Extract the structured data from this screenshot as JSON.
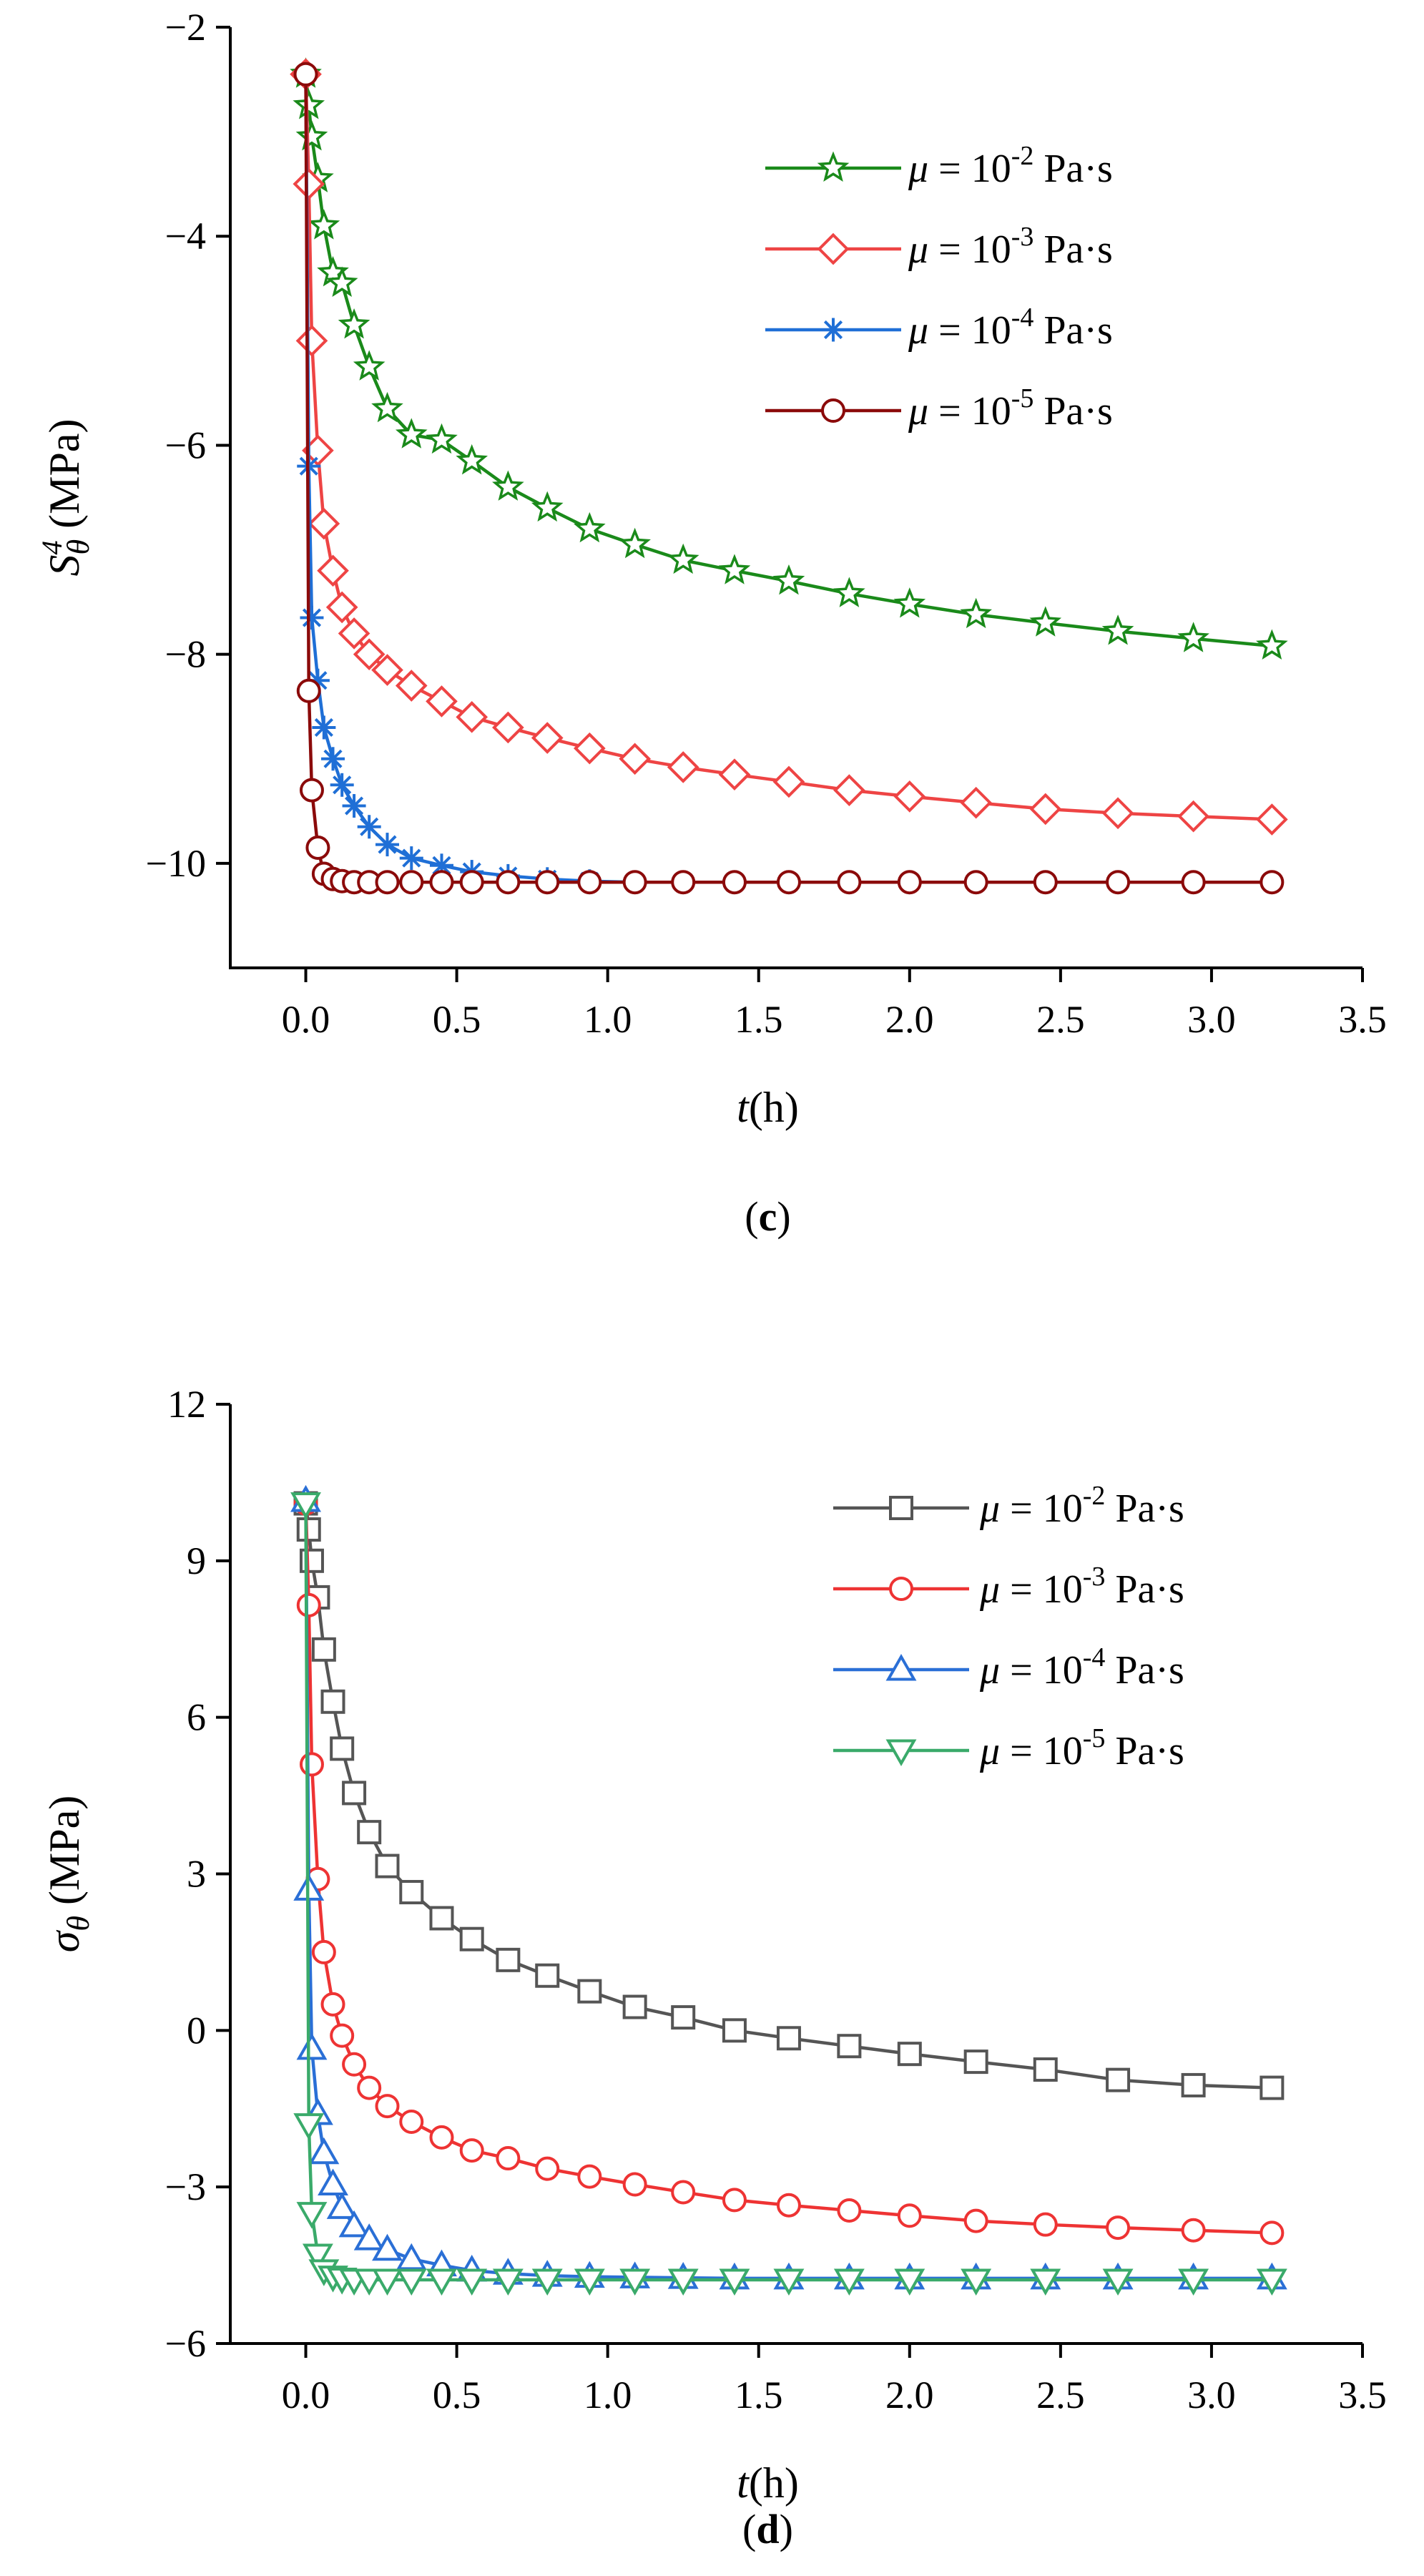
{
  "chart_data": [
    {
      "type": "line",
      "panel_label": "(c)",
      "panel_letter": "c",
      "xlabel": {
        "var": "t",
        "unit": "(h)"
      },
      "ylabel": {
        "base": "S",
        "sup": "4",
        "sub": "θ",
        "unit": " (MPa)"
      },
      "xlim": [
        -0.25,
        3.5
      ],
      "ylim": [
        -11,
        -2
      ],
      "xticks": [
        0.0,
        0.5,
        1.0,
        1.5,
        2.0,
        2.5,
        3.0,
        3.5
      ],
      "xtick_labels": [
        "0.0",
        "0.5",
        "1.0",
        "1.5",
        "2.0",
        "2.5",
        "3.0",
        "3.5"
      ],
      "yticks": [
        -2,
        -4,
        -6,
        -8,
        -10
      ],
      "ytick_labels": [
        "−2",
        "−4",
        "−6",
        "−8",
        "−10"
      ],
      "x": [
        0,
        0.01,
        0.02,
        0.04,
        0.06,
        0.09,
        0.12,
        0.16,
        0.21,
        0.27,
        0.35,
        0.45,
        0.55,
        0.67,
        0.8,
        0.94,
        1.09,
        1.25,
        1.42,
        1.6,
        1.8,
        2.0,
        2.22,
        2.45,
        2.69,
        2.94,
        3.2
      ],
      "series": [
        {
          "name": "μ = 10-2 Pa·s",
          "legend": {
            "pre": "μ",
            "mid": " = 10",
            "sup": "-2",
            "post": " Pa·s"
          },
          "color": "#1a8a1a",
          "marker": "star",
          "values": [
            -2.45,
            -2.75,
            -3.05,
            -3.45,
            -3.9,
            -4.35,
            -4.45,
            -4.85,
            -5.25,
            -5.65,
            -5.9,
            -5.95,
            -6.15,
            -6.4,
            -6.6,
            -6.8,
            -6.95,
            -7.1,
            -7.2,
            -7.3,
            -7.42,
            -7.52,
            -7.62,
            -7.7,
            -7.78,
            -7.85,
            -7.92
          ]
        },
        {
          "name": "μ = 10-3 Pa·s",
          "legend": {
            "pre": "μ",
            "mid": " = 10",
            "sup": "-3",
            "post": " Pa·s"
          },
          "color": "#ee4444",
          "marker": "diamond",
          "values": [
            -2.45,
            -3.5,
            -5.0,
            -6.05,
            -6.75,
            -7.2,
            -7.55,
            -7.8,
            -8.0,
            -8.15,
            -8.3,
            -8.45,
            -8.6,
            -8.7,
            -8.8,
            -8.9,
            -9.0,
            -9.08,
            -9.15,
            -9.22,
            -9.3,
            -9.36,
            -9.42,
            -9.48,
            -9.52,
            -9.55,
            -9.58
          ]
        },
        {
          "name": "μ = 10-4 Pa·s",
          "legend": {
            "pre": "μ",
            "mid": " = 10",
            "sup": "-4",
            "post": " Pa·s"
          },
          "color": "#1f6fd6",
          "marker": "asterisk",
          "values": [
            -2.45,
            -6.2,
            -7.65,
            -8.25,
            -8.7,
            -9.0,
            -9.25,
            -9.45,
            -9.65,
            -9.82,
            -9.95,
            -10.02,
            -10.08,
            -10.12,
            -10.15,
            -10.17,
            -10.18,
            -10.18,
            -10.18,
            -10.18,
            -10.18,
            -10.18,
            -10.18,
            -10.18,
            -10.18,
            -10.18,
            -10.18
          ]
        },
        {
          "name": "μ = 10-5 Pa·s",
          "legend": {
            "pre": "μ",
            "mid": " = 10",
            "sup": "-5",
            "post": " Pa·s"
          },
          "color": "#8b0a0a",
          "marker": "circle",
          "values": [
            -2.45,
            -8.35,
            -9.3,
            -9.85,
            -10.1,
            -10.15,
            -10.17,
            -10.18,
            -10.18,
            -10.18,
            -10.18,
            -10.18,
            -10.18,
            -10.18,
            -10.18,
            -10.18,
            -10.18,
            -10.18,
            -10.18,
            -10.18,
            -10.18,
            -10.18,
            -10.18,
            -10.18,
            -10.18,
            -10.18,
            -10.18
          ]
        }
      ]
    },
    {
      "type": "line",
      "panel_label": "(d)",
      "panel_letter": "d",
      "xlabel": {
        "var": "t",
        "unit": "(h)"
      },
      "ylabel": {
        "base": "σ",
        "sup": "",
        "sub": "θ",
        "unit": " (MPa)"
      },
      "xlim": [
        -0.25,
        3.5
      ],
      "ylim": [
        -6,
        12
      ],
      "xticks": [
        0.0,
        0.5,
        1.0,
        1.5,
        2.0,
        2.5,
        3.0,
        3.5
      ],
      "xtick_labels": [
        "0.0",
        "0.5",
        "1.0",
        "1.5",
        "2.0",
        "2.5",
        "3.0",
        "3.5"
      ],
      "yticks": [
        12,
        9,
        6,
        3,
        0,
        -3,
        -6
      ],
      "ytick_labels": [
        "12",
        "9",
        "6",
        "3",
        "0",
        "−3",
        "−6"
      ],
      "x": [
        0,
        0.01,
        0.02,
        0.04,
        0.06,
        0.09,
        0.12,
        0.16,
        0.21,
        0.27,
        0.35,
        0.45,
        0.55,
        0.67,
        0.8,
        0.94,
        1.09,
        1.25,
        1.42,
        1.6,
        1.8,
        2.0,
        2.22,
        2.45,
        2.69,
        2.94,
        3.2
      ],
      "series": [
        {
          "name": "μ = 10-2 Pa·s",
          "legend": {
            "pre": "μ",
            "mid": " = 10",
            "sup": "-2",
            "post": " Pa·s"
          },
          "color": "#555555",
          "marker": "square",
          "values": [
            10.1,
            9.6,
            9.0,
            8.3,
            7.3,
            6.3,
            5.4,
            4.55,
            3.8,
            3.15,
            2.65,
            2.15,
            1.75,
            1.35,
            1.05,
            0.75,
            0.45,
            0.25,
            0.0,
            -0.15,
            -0.3,
            -0.45,
            -0.6,
            -0.75,
            -0.95,
            -1.05,
            -1.1
          ]
        },
        {
          "name": "μ = 10-3 Pa·s",
          "legend": {
            "pre": "μ",
            "mid": " = 10",
            "sup": "-3",
            "post": " Pa·s"
          },
          "color": "#ee3333",
          "marker": "circle",
          "values": [
            10.1,
            8.15,
            5.1,
            2.9,
            1.5,
            0.5,
            -0.1,
            -0.65,
            -1.1,
            -1.45,
            -1.75,
            -2.05,
            -2.3,
            -2.45,
            -2.65,
            -2.8,
            -2.95,
            -3.1,
            -3.25,
            -3.35,
            -3.45,
            -3.55,
            -3.65,
            -3.72,
            -3.78,
            -3.83,
            -3.88
          ]
        },
        {
          "name": "μ = 10-4 Pa·s",
          "legend": {
            "pre": "μ",
            "mid": " = 10",
            "sup": "-4",
            "post": " Pa·s"
          },
          "color": "#2a6fd6",
          "marker": "triangle-up",
          "values": [
            10.15,
            2.7,
            -0.35,
            -1.6,
            -2.35,
            -2.95,
            -3.4,
            -3.75,
            -4.0,
            -4.2,
            -4.38,
            -4.5,
            -4.6,
            -4.66,
            -4.7,
            -4.72,
            -4.73,
            -4.74,
            -4.75,
            -4.75,
            -4.75,
            -4.75,
            -4.75,
            -4.75,
            -4.75,
            -4.75,
            -4.75
          ]
        },
        {
          "name": "μ = 10-5 Pa·s",
          "legend": {
            "pre": "μ",
            "mid": " = 10",
            "sup": "-5",
            "post": " Pa·s"
          },
          "color": "#3aaa6a",
          "marker": "triangle-down",
          "values": [
            10.1,
            -1.8,
            -3.5,
            -4.3,
            -4.6,
            -4.72,
            -4.76,
            -4.78,
            -4.78,
            -4.78,
            -4.78,
            -4.78,
            -4.78,
            -4.78,
            -4.78,
            -4.78,
            -4.78,
            -4.78,
            -4.78,
            -4.78,
            -4.78,
            -4.78,
            -4.78,
            -4.78,
            -4.78,
            -4.78,
            -4.78
          ]
        }
      ]
    }
  ]
}
